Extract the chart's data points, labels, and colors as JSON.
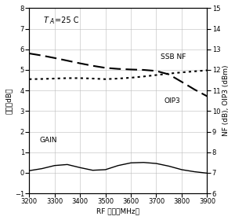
{
  "title_annotation": "T",
  "title_subscript": "A",
  "title_rest": "=25 C",
  "xlabel": "RF 输出（MHz）",
  "ylabel_left": "增益（dB）",
  "ylabel_right": "NF (dB), OIP3 (dBm)",
  "xlim": [
    3200,
    3900
  ],
  "ylim_left": [
    -1,
    8
  ],
  "ylim_right": [
    6,
    15
  ],
  "yticks_left": [
    -1,
    0,
    1,
    2,
    3,
    4,
    5,
    6,
    7,
    8
  ],
  "yticks_right": [
    6,
    7,
    8,
    9,
    10,
    11,
    12,
    13,
    14,
    15
  ],
  "xticks": [
    3200,
    3300,
    3400,
    3500,
    3600,
    3700,
    3800,
    3900
  ],
  "gain_x": [
    3200,
    3250,
    3300,
    3350,
    3400,
    3450,
    3500,
    3550,
    3600,
    3650,
    3700,
    3750,
    3800,
    3850,
    3900
  ],
  "gain_y": [
    0.1,
    0.2,
    0.35,
    0.4,
    0.25,
    0.12,
    0.15,
    0.35,
    0.48,
    0.5,
    0.45,
    0.32,
    0.15,
    0.05,
    -0.02
  ],
  "ssbnf_x": [
    3200,
    3250,
    3300,
    3350,
    3400,
    3450,
    3500,
    3550,
    3600,
    3650,
    3700,
    3750,
    3800,
    3850,
    3900
  ],
  "ssbnf_y": [
    5.8,
    5.7,
    5.58,
    5.45,
    5.32,
    5.2,
    5.1,
    5.05,
    5.02,
    5.0,
    4.95,
    4.78,
    4.42,
    4.05,
    3.72
  ],
  "oip3_x": [
    3200,
    3250,
    3300,
    3350,
    3400,
    3450,
    3500,
    3550,
    3600,
    3650,
    3700,
    3750,
    3800,
    3850,
    3900
  ],
  "oip3_y": [
    4.55,
    4.56,
    4.58,
    4.6,
    4.6,
    4.58,
    4.55,
    4.58,
    4.62,
    4.68,
    4.75,
    4.82,
    4.88,
    4.93,
    4.98
  ],
  "gain_label": "GAIN",
  "ssbnf_label": "SSB NF",
  "oip3_label": "OIP3",
  "color": "#000000",
  "background_color": "#ffffff",
  "grid_color": "#bbbbbb"
}
